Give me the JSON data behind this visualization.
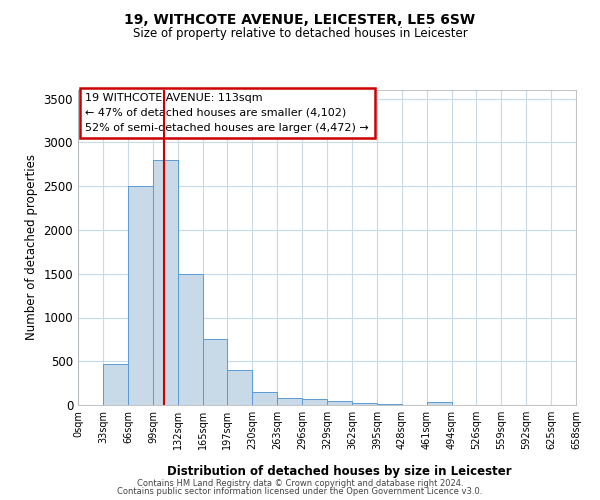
{
  "title": "19, WITHCOTE AVENUE, LEICESTER, LE5 6SW",
  "subtitle": "Size of property relative to detached houses in Leicester",
  "xlabel": "Distribution of detached houses by size in Leicester",
  "ylabel": "Number of detached properties",
  "bin_edges": [
    0,
    33,
    66,
    99,
    132,
    165,
    197,
    230,
    263,
    296,
    329,
    362,
    395,
    428,
    461,
    494,
    526,
    559,
    592,
    625,
    658
  ],
  "bin_labels": [
    "0sqm",
    "33sqm",
    "66sqm",
    "99sqm",
    "132sqm",
    "165sqm",
    "197sqm",
    "230sqm",
    "263sqm",
    "296sqm",
    "329sqm",
    "362sqm",
    "395sqm",
    "428sqm",
    "461sqm",
    "494sqm",
    "526sqm",
    "559sqm",
    "592sqm",
    "625sqm",
    "658sqm"
  ],
  "counts": [
    5,
    470,
    2500,
    2800,
    1500,
    750,
    400,
    150,
    80,
    70,
    50,
    20,
    15,
    0,
    30,
    0,
    0,
    0,
    0,
    0
  ],
  "bar_color": "#c8d9e8",
  "bar_edge_color": "#5b9bd5",
  "grid_color": "#c8d9e8",
  "vline_x": 113,
  "vline_color": "#cc0000",
  "annotation_line1": "19 WITHCOTE AVENUE: 113sqm",
  "annotation_line2": "← 47% of detached houses are smaller (4,102)",
  "annotation_line3": "52% of semi-detached houses are larger (4,472) →",
  "annotation_box_color": "#ffffff",
  "annotation_box_edge": "#cc0000",
  "ylim": [
    0,
    3600
  ],
  "yticks": [
    0,
    500,
    1000,
    1500,
    2000,
    2500,
    3000,
    3500
  ],
  "footer1": "Contains HM Land Registry data © Crown copyright and database right 2024.",
  "footer2": "Contains public sector information licensed under the Open Government Licence v3.0."
}
